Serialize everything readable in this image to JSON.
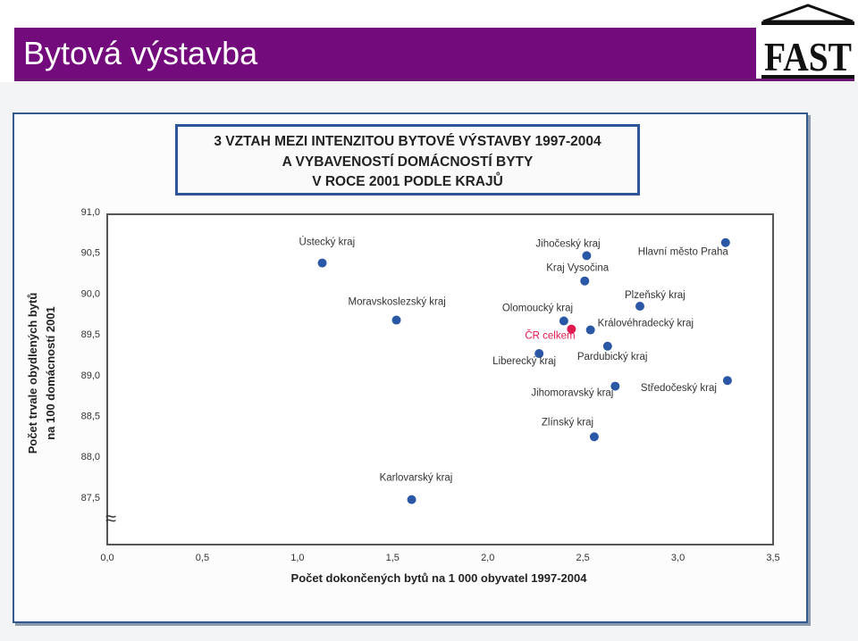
{
  "page": {
    "title": "Bytová výstavba"
  },
  "logo": {
    "text": "FAST"
  },
  "colors": {
    "header": "#730b7c",
    "point": "#2a57a6",
    "highlight": "#e01a4f",
    "frame": "#34598e"
  },
  "chart_data": {
    "type": "scatter",
    "title_lines": [
      "3  VZTAH MEZI INTENZITOU BYTOVÉ VÝSTAVBY 1997-2004",
      "A VYBAVENOSTÍ DOMÁCNOSTÍ BYTY",
      "V ROCE 2001 PODLE KRAJŮ"
    ],
    "xlabel": "Počet dokončených bytů na 1 000 obyvatel  1997-2004",
    "ylabel_lines": [
      "Počet trvale obydlených bytů",
      "na 100 domácností 2001"
    ],
    "xlim": [
      0,
      3.5
    ],
    "ylim": [
      87.5,
      91.0
    ],
    "xticks": [
      0,
      0.5,
      1.0,
      1.5,
      2.0,
      2.5,
      3.0,
      3.5
    ],
    "xtick_labels": [
      "0,0",
      "0,5",
      "1,0",
      "1,5",
      "2,0",
      "2,5",
      "3,0",
      "3,5"
    ],
    "yticks": [
      91.0,
      90.5,
      90.0,
      89.5,
      89.0,
      88.5,
      88.0,
      87.5
    ],
    "ytick_labels": [
      "91,0",
      "90,5",
      "90,0",
      "89,5",
      "89,0",
      "88,5",
      "88,0",
      "87,5"
    ],
    "axis_break": "≈",
    "points": [
      {
        "label": "Ústecký kraj",
        "x": 1.13,
        "y": 90.37,
        "highlight": false
      },
      {
        "label": "Moravskoslezský kraj",
        "x": 1.52,
        "y": 89.67,
        "highlight": false
      },
      {
        "label": "Karlovarský kraj",
        "x": 1.6,
        "y": 87.47,
        "highlight": false
      },
      {
        "label": "Jihočeský kraj",
        "x": 2.52,
        "y": 90.46,
        "highlight": false
      },
      {
        "label": "Kraj Vysočina",
        "x": 2.51,
        "y": 90.15,
        "highlight": false
      },
      {
        "label": "Olomoucký kraj",
        "x": 2.4,
        "y": 89.66,
        "highlight": false
      },
      {
        "label": "ČR celkem",
        "x": 2.44,
        "y": 89.56,
        "highlight": true
      },
      {
        "label": "Královéhradecký kraj",
        "x": 2.54,
        "y": 89.55,
        "highlight": false
      },
      {
        "label": "Pardubický kraj",
        "x": 2.63,
        "y": 89.35,
        "highlight": false
      },
      {
        "label": "Liberecký kraj",
        "x": 2.27,
        "y": 89.26,
        "highlight": false
      },
      {
        "label": "Plzeňský kraj",
        "x": 2.8,
        "y": 89.84,
        "highlight": false
      },
      {
        "label": "Hlavní město Praha",
        "x": 3.25,
        "y": 90.62,
        "highlight": false
      },
      {
        "label": "Středočeský kraj",
        "x": 3.26,
        "y": 88.93,
        "highlight": false
      },
      {
        "label": "Jihomoravský kraj",
        "x": 2.67,
        "y": 88.86,
        "highlight": false
      },
      {
        "label": "Zlínský kraj",
        "x": 2.56,
        "y": 88.24,
        "highlight": false
      }
    ]
  }
}
